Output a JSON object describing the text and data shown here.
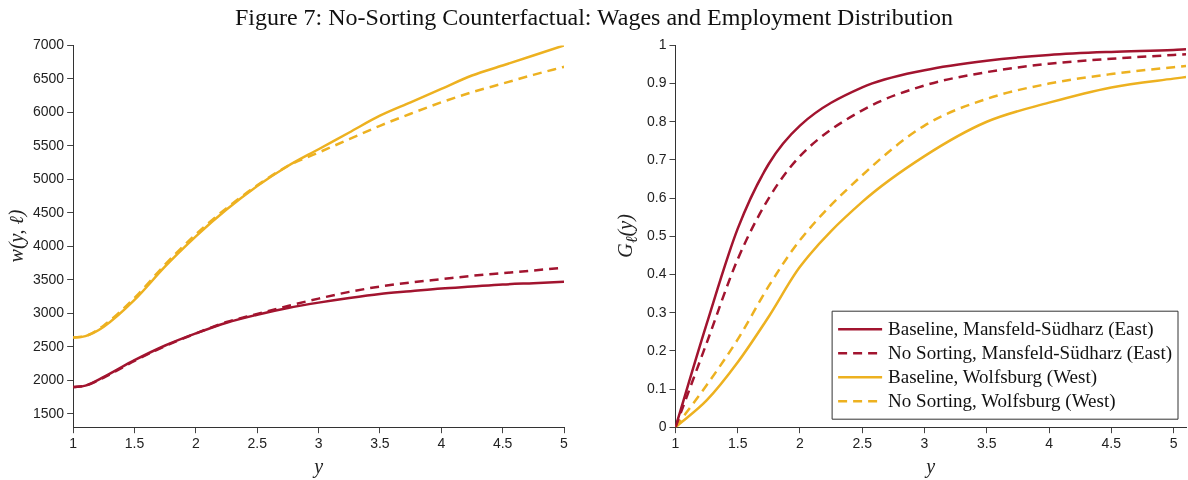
{
  "chart_data": [
    {
      "type": "line",
      "title": "Figure 7: No-Sorting Counterfactual: Wages and Employment Distribution",
      "xlabel": "y",
      "ylabel": "w(y, ℓ)",
      "x": [
        1,
        1.1,
        1.25,
        1.5,
        1.75,
        2,
        2.25,
        2.5,
        2.75,
        3,
        3.25,
        3.5,
        3.75,
        4,
        4.25,
        4.5,
        4.75,
        5
      ],
      "xlim": [
        1,
        5
      ],
      "xticks": [
        1,
        1.5,
        2,
        2.5,
        3,
        3.5,
        4,
        4.5,
        5
      ],
      "ylim": [
        1300,
        7000
      ],
      "yticks": [
        1500,
        2000,
        2500,
        3000,
        3500,
        4000,
        4500,
        5000,
        5500,
        6000,
        6500,
        7000
      ],
      "grid": false,
      "legend": false,
      "marker": "none",
      "series": [
        {
          "color": "#a2142f",
          "line_style": "solid",
          "values": [
            1900,
            1920,
            2050,
            2300,
            2520,
            2700,
            2860,
            2980,
            3080,
            3160,
            3230,
            3290,
            3330,
            3370,
            3400,
            3430,
            3450,
            3470
          ]
        },
        {
          "color": "#a2142f",
          "line_style": "dashed",
          "values": [
            1900,
            1920,
            2040,
            2290,
            2510,
            2700,
            2870,
            2990,
            3110,
            3220,
            3320,
            3400,
            3460,
            3510,
            3560,
            3600,
            3640,
            3680
          ]
        },
        {
          "color": "#edb120",
          "line_style": "solid",
          "values": [
            2640,
            2660,
            2800,
            3200,
            3700,
            4150,
            4550,
            4900,
            5200,
            5450,
            5700,
            5950,
            6150,
            6350,
            6550,
            6700,
            6850,
            7000
          ]
        },
        {
          "color": "#edb120",
          "line_style": "dashed",
          "values": [
            2640,
            2660,
            2820,
            3230,
            3730,
            4180,
            4570,
            4910,
            5200,
            5400,
            5600,
            5800,
            5980,
            6150,
            6300,
            6430,
            6560,
            6680
          ]
        }
      ]
    },
    {
      "type": "line",
      "xlabel": "y",
      "ylabel": "G$_{ℓ}$(y)",
      "x": [
        1,
        1.25,
        1.5,
        1.75,
        2,
        2.5,
        3,
        3.5,
        4,
        4.5,
        5,
        5.1
      ],
      "xlim": [
        1,
        5.1
      ],
      "xticks": [
        1,
        1.5,
        2,
        2.5,
        3,
        3.5,
        4,
        4.5,
        5
      ],
      "ylim": [
        0,
        1
      ],
      "yticks": [
        0,
        0.1,
        0.2,
        0.3,
        0.4,
        0.5,
        0.6,
        0.7,
        0.8,
        0.9,
        1
      ],
      "grid": false,
      "legend": "bottom right",
      "marker": "none",
      "series": [
        {
          "name": "Baseline, Mansfeld-Südharz (East)",
          "color": "#a2142f",
          "line_style": "solid",
          "values": [
            0,
            0.27,
            0.52,
            0.69,
            0.79,
            0.89,
            0.935,
            0.96,
            0.975,
            0.983,
            0.988,
            0.99
          ]
        },
        {
          "name": "No Sorting, Mansfeld-Südharz (East)",
          "color": "#a2142f",
          "line_style": "dashed",
          "values": [
            0,
            0.22,
            0.44,
            0.6,
            0.71,
            0.83,
            0.895,
            0.93,
            0.952,
            0.965,
            0.975,
            0.977
          ]
        },
        {
          "name": "Baseline, Wolfsburg (West)",
          "color": "#edb120",
          "line_style": "solid",
          "values": [
            0,
            0.07,
            0.17,
            0.29,
            0.42,
            0.59,
            0.71,
            0.8,
            0.85,
            0.89,
            0.913,
            0.917
          ]
        },
        {
          "name": "No Sorting, Wolfsburg (West)",
          "color": "#edb120",
          "line_style": "dashed",
          "values": [
            0,
            0.11,
            0.23,
            0.37,
            0.49,
            0.66,
            0.79,
            0.86,
            0.9,
            0.925,
            0.943,
            0.946
          ]
        }
      ]
    }
  ]
}
